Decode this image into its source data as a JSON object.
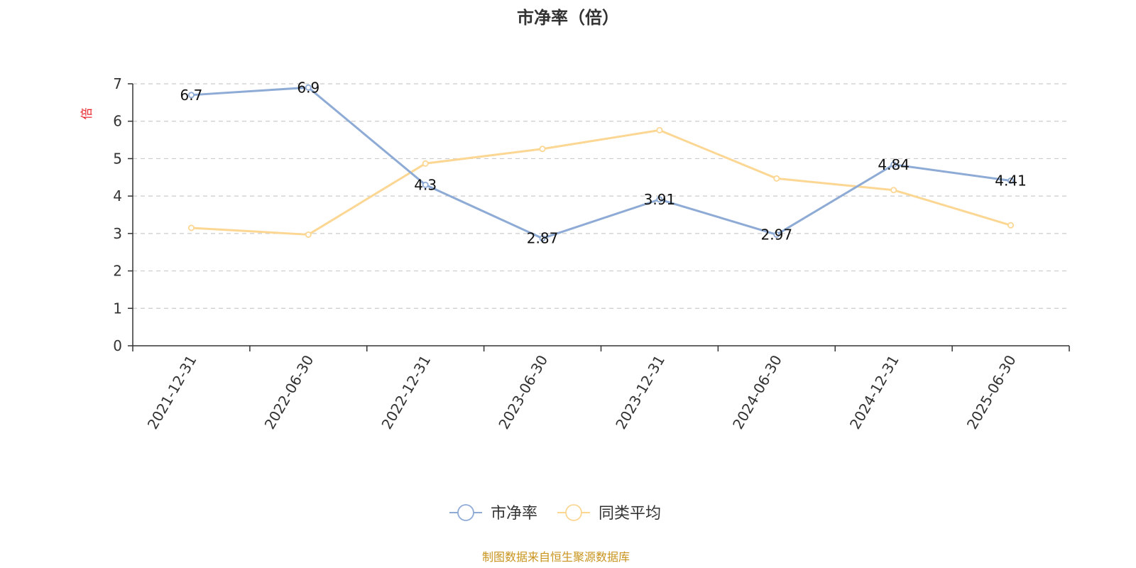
{
  "chart_data": {
    "type": "line",
    "title": "市净率（倍）",
    "ylabel": "倍",
    "xlabel": "",
    "categories": [
      "2021-12-31",
      "2022-06-30",
      "2022-12-31",
      "2023-06-30",
      "2023-12-31",
      "2024-06-30",
      "2024-12-31",
      "2025-06-30"
    ],
    "ylim": [
      0,
      7
    ],
    "yticks": [
      0,
      1,
      2,
      3,
      4,
      5,
      6,
      7
    ],
    "grid": true,
    "legend_position": "bottom-center",
    "series": [
      {
        "name": "市净率",
        "color": "#8eabd6",
        "values": [
          6.7,
          6.9,
          4.3,
          2.87,
          3.91,
          2.97,
          4.84,
          4.41
        ],
        "show_labels": true
      },
      {
        "name": "同类平均",
        "color": "#fcd794",
        "values": [
          3.15,
          2.97,
          4.87,
          5.26,
          5.76,
          4.47,
          4.16,
          3.22
        ],
        "show_labels": false
      }
    ],
    "colors": {
      "axis": "#333333",
      "grid": "#cccccc",
      "unit_label": "#e8202a",
      "source": "#c8941e"
    },
    "source_note": "制图数据来自恒生聚源数据库"
  }
}
